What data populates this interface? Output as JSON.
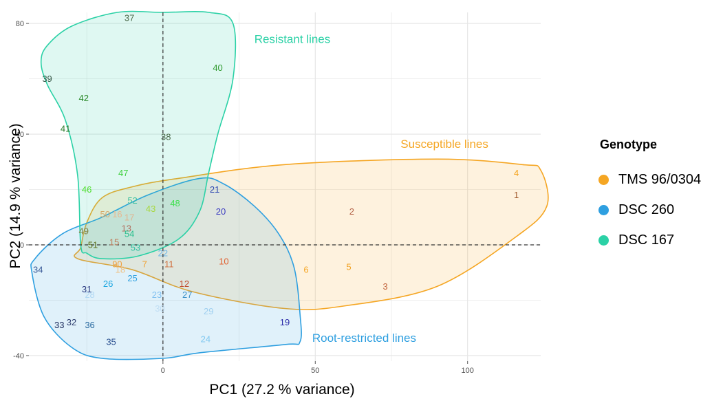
{
  "chart_data": {
    "type": "scatter",
    "xlabel": "PC1 (27.2 % variance)",
    "ylabel": "PC2 (14.9 % variance)",
    "xlim": [
      -44,
      124
    ],
    "ylim": [
      -42,
      84
    ],
    "x_ticks": [
      0,
      50,
      100
    ],
    "y_ticks": [
      -40,
      0,
      40,
      80
    ],
    "x_tick_labels": [
      "0",
      "50",
      "100"
    ],
    "y_tick_labels": [
      "-40",
      "0",
      "40",
      "80"
    ],
    "grid": true,
    "reference_lines": {
      "x": 0,
      "y": 0
    },
    "legend": {
      "title": "Genotype",
      "position": "right",
      "entries": [
        {
          "label": "TMS 96/0304",
          "color": "#f5a623"
        },
        {
          "label": "DSC 260",
          "color": "#2e9fe0"
        },
        {
          "label": "DSC 167",
          "color": "#2bd1a6"
        }
      ]
    },
    "hulls": [
      {
        "label": "Susceptible lines",
        "color": "#f5a623",
        "points": [
          [
            -27,
            -1
          ],
          [
            -25,
            8
          ],
          [
            -20,
            17
          ],
          [
            -10,
            21
          ],
          [
            5,
            24
          ],
          [
            40,
            29
          ],
          [
            90,
            31
          ],
          [
            118,
            29
          ],
          [
            124,
            27
          ],
          [
            126,
            14
          ],
          [
            116,
            3
          ],
          [
            90,
            -15
          ],
          [
            60,
            -22
          ],
          [
            40,
            -23
          ],
          [
            10,
            -17
          ],
          [
            -10,
            -9
          ],
          [
            -28,
            -5
          ]
        ]
      },
      {
        "label": "Root-restricted lines",
        "color": "#2e9fe0",
        "points": [
          [
            -43,
            -10
          ],
          [
            -42,
            -5
          ],
          [
            -33,
            4
          ],
          [
            -20,
            10
          ],
          [
            -5,
            18
          ],
          [
            12,
            24
          ],
          [
            20,
            22
          ],
          [
            30,
            14
          ],
          [
            38,
            4
          ],
          [
            43,
            -8
          ],
          [
            45,
            -25
          ],
          [
            45,
            -35
          ],
          [
            40,
            -36
          ],
          [
            12,
            -39
          ],
          [
            0,
            -41
          ],
          [
            -20,
            -41
          ],
          [
            -30,
            -37
          ],
          [
            -39,
            -26
          ]
        ]
      },
      {
        "label": "Resistant lines",
        "color": "#2bd1a6",
        "points": [
          [
            -40,
            66
          ],
          [
            -38,
            72
          ],
          [
            -30,
            79
          ],
          [
            -15,
            84
          ],
          [
            0,
            84
          ],
          [
            15,
            84
          ],
          [
            23,
            80
          ],
          [
            23,
            60
          ],
          [
            18,
            40
          ],
          [
            15,
            26
          ],
          [
            12,
            12
          ],
          [
            5,
            2
          ],
          [
            -8,
            -4
          ],
          [
            -20,
            -5
          ],
          [
            -25,
            -3
          ],
          [
            -27,
            0
          ],
          [
            -28,
            25
          ],
          [
            -32,
            45
          ],
          [
            -38,
            58
          ]
        ]
      }
    ],
    "series": [
      {
        "name": "TMS 96/0304",
        "points": [
          {
            "label": "1",
            "x": 116,
            "y": 18,
            "color": "#a05a2c"
          },
          {
            "label": "2",
            "x": 62,
            "y": 12,
            "color": "#b5654a"
          },
          {
            "label": "3",
            "x": 73,
            "y": -15,
            "color": "#c0623a"
          },
          {
            "label": "4",
            "x": 116,
            "y": 26,
            "color": "#f5a623"
          },
          {
            "label": "5",
            "x": 61,
            "y": -8,
            "color": "#f0a020"
          },
          {
            "label": "6",
            "x": 47,
            "y": -9,
            "color": "#f5a623"
          },
          {
            "label": "7",
            "x": -6,
            "y": -7,
            "color": "#f0a030"
          },
          {
            "label": "10",
            "x": 20,
            "y": -6,
            "color": "#e06030"
          },
          {
            "label": "11",
            "x": 2,
            "y": -7,
            "color": "#d07040"
          },
          {
            "label": "12",
            "x": 7,
            "y": -14,
            "color": "#c04a2a"
          },
          {
            "label": "13",
            "x": -12,
            "y": 6,
            "color": "#b07060"
          },
          {
            "label": "15",
            "x": -16,
            "y": 1,
            "color": "#c08060"
          },
          {
            "label": "16",
            "x": -15,
            "y": 11,
            "color": "#e8b890"
          },
          {
            "label": "17",
            "x": -11,
            "y": 10,
            "color": "#e0b490"
          },
          {
            "label": "18",
            "x": -14,
            "y": -9,
            "color": "#f0c080"
          },
          {
            "label": "50",
            "x": -19,
            "y": 11,
            "color": "#d6a86a"
          },
          {
            "label": "90",
            "x": -15,
            "y": -7,
            "color": "#f0a040"
          }
        ]
      },
      {
        "name": "DSC 260",
        "points": [
          {
            "label": "19",
            "x": 40,
            "y": -28,
            "color": "#2a2aa8"
          },
          {
            "label": "20",
            "x": 19,
            "y": 12,
            "color": "#3a3ac0"
          },
          {
            "label": "21",
            "x": 17,
            "y": 20,
            "color": "#2a45b0"
          },
          {
            "label": "22",
            "x": 0,
            "y": -3,
            "color": "#70b8e8"
          },
          {
            "label": "23",
            "x": -2,
            "y": -18,
            "color": "#80c0f0"
          },
          {
            "label": "24",
            "x": 14,
            "y": -34,
            "color": "#80c8f0"
          },
          {
            "label": "25",
            "x": -10,
            "y": -12,
            "color": "#2ea0e0"
          },
          {
            "label": "26",
            "x": -18,
            "y": -14,
            "color": "#1aa6e0"
          },
          {
            "label": "27",
            "x": 8,
            "y": -18,
            "color": "#3a90c8"
          },
          {
            "label": "28",
            "x": -24,
            "y": -18,
            "color": "#b0d8f4"
          },
          {
            "label": "29",
            "x": 15,
            "y": -24,
            "color": "#a0d0f0"
          },
          {
            "label": "30",
            "x": -1,
            "y": -23,
            "color": "#c0def4"
          },
          {
            "label": "31",
            "x": -25,
            "y": -16,
            "color": "#2a3a80"
          },
          {
            "label": "32",
            "x": -30,
            "y": -28,
            "color": "#304070"
          },
          {
            "label": "33",
            "x": -34,
            "y": -29,
            "color": "#203060"
          },
          {
            "label": "34",
            "x": -41,
            "y": -9,
            "color": "#3a5a98"
          },
          {
            "label": "35",
            "x": -17,
            "y": -35,
            "color": "#2a5090"
          },
          {
            "label": "36",
            "x": -24,
            "y": -29,
            "color": "#2a6aa0"
          }
        ]
      },
      {
        "name": "DSC 167",
        "points": [
          {
            "label": "37",
            "x": -11,
            "y": 82,
            "color": "#4a6a4a"
          },
          {
            "label": "38",
            "x": 1,
            "y": 39,
            "color": "#4a6a4a"
          },
          {
            "label": "39",
            "x": -38,
            "y": 60,
            "color": "#3a5a4a"
          },
          {
            "label": "40",
            "x": 18,
            "y": 64,
            "color": "#2e9a2e"
          },
          {
            "label": "41",
            "x": -32,
            "y": 42,
            "color": "#2a7a2a"
          },
          {
            "label": "42",
            "x": -26,
            "y": 53,
            "color": "#2a8a2a"
          },
          {
            "label": "43",
            "x": -4,
            "y": 13,
            "color": "#a8d840"
          },
          {
            "label": "46",
            "x": -25,
            "y": 20,
            "color": "#50e030"
          },
          {
            "label": "47",
            "x": -13,
            "y": 26,
            "color": "#40d040"
          },
          {
            "label": "48",
            "x": 4,
            "y": 15,
            "color": "#40e050"
          },
          {
            "label": "49",
            "x": -26,
            "y": 5,
            "color": "#808040"
          },
          {
            "label": "51",
            "x": -23,
            "y": 0,
            "color": "#607020"
          },
          {
            "label": "52",
            "x": -10,
            "y": 16,
            "color": "#40c0a0"
          },
          {
            "label": "53",
            "x": -9,
            "y": -1,
            "color": "#30c0a0"
          },
          {
            "label": "54",
            "x": -11,
            "y": 4,
            "color": "#30c090"
          }
        ]
      }
    ],
    "annotations": [
      {
        "text": "Resistant lines",
        "x": 30,
        "y": 73,
        "color": "#2bd1a6"
      },
      {
        "text": "Susceptible lines",
        "x": 78,
        "y": 35,
        "color": "#f5a623"
      },
      {
        "text": "Root-restricted lines",
        "x": 49,
        "y": -35,
        "color": "#2e9fe0"
      }
    ]
  }
}
